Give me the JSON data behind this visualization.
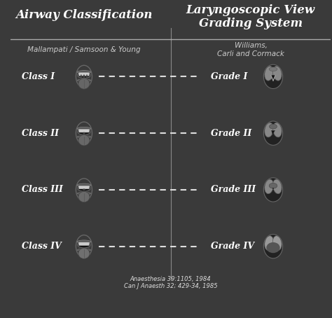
{
  "bg_color": "#3a3a3a",
  "title_left": "Airway Classification",
  "title_right": "Laryngoscopic View\nGrading System",
  "subtitle_left": "Mallampati / Samsoon & Young",
  "subtitle_right": "Williams,\nCarli and Cormack",
  "classes": [
    "Class I",
    "Class II",
    "Class III",
    "Class IV"
  ],
  "grades": [
    "Grade I",
    "Grade II",
    "Grade III",
    "Grade IV"
  ],
  "text_color": "#ffffff",
  "dashed_color": "#ffffff",
  "reference_text": "Anaesthesia 39:1105, 1984\nCan J Anaesth 32; 429-34, 1985",
  "ref_color": "#dddddd"
}
